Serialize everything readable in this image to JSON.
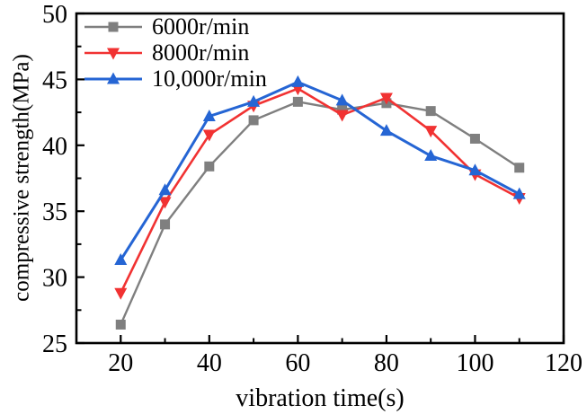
{
  "figure": {
    "background": "#ffffff",
    "axis_color": "#000000",
    "text_color": "#000000"
  },
  "chart_data": {
    "type": "line",
    "title": "",
    "xlabel": "vibration time(s)",
    "ylabel": "compressive strength(MPa)",
    "xlim": [
      10,
      120
    ],
    "ylim": [
      25,
      50
    ],
    "grid": false,
    "legend_position": "top-left-inside",
    "x": [
      20,
      30,
      40,
      50,
      60,
      70,
      80,
      90,
      100,
      110
    ],
    "x_major_ticks": [
      20,
      40,
      60,
      80,
      100,
      120
    ],
    "x_minor_ticks": [
      30,
      50,
      70,
      90,
      110
    ],
    "y_major_ticks": [
      25,
      30,
      35,
      40,
      45,
      50
    ],
    "y_minor_ticks": [
      27.5,
      32.5,
      37.5,
      42.5,
      47.5
    ],
    "series": [
      {
        "name": "6000r/min",
        "color": "#7f7f7f",
        "marker": "square",
        "values": [
          26.4,
          34.0,
          38.4,
          41.9,
          43.3,
          42.7,
          43.2,
          42.6,
          40.5,
          38.3
        ]
      },
      {
        "name": "8000r/min",
        "color": "#f13232",
        "marker": "triangle-down",
        "values": [
          28.8,
          35.7,
          40.8,
          43.0,
          44.3,
          42.3,
          43.6,
          41.1,
          37.8,
          36.0
        ]
      },
      {
        "name": "10,000r/min",
        "color": "#2565d4",
        "marker": "triangle-up",
        "values": [
          31.3,
          36.6,
          42.2,
          43.3,
          44.8,
          43.4,
          41.1,
          39.2,
          38.1,
          36.3
        ]
      }
    ]
  }
}
